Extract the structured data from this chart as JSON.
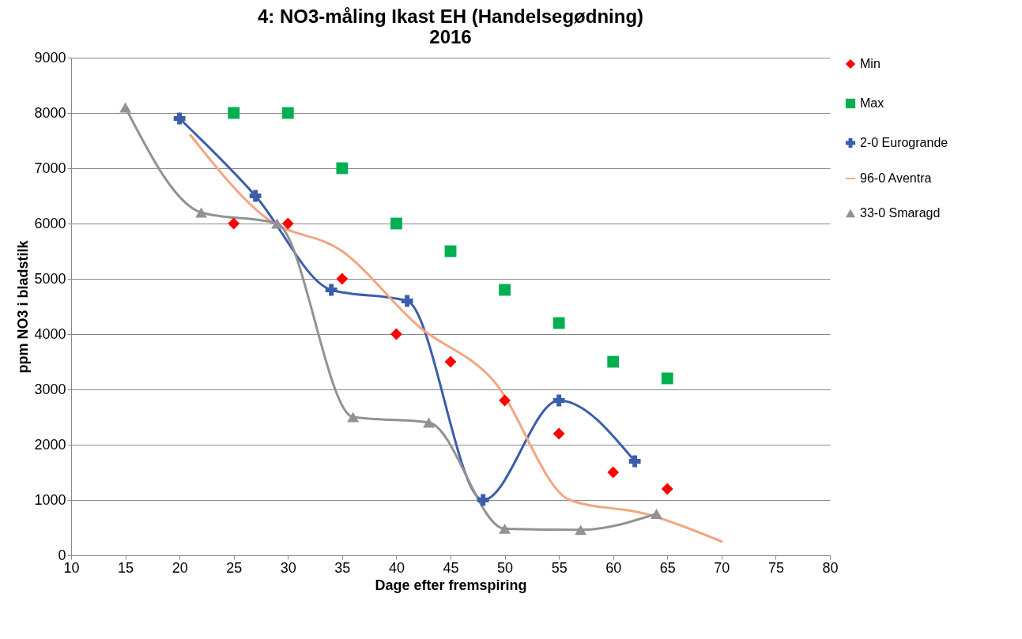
{
  "chart_data": {
    "type": "line",
    "title": "4: NO3-måling Ikast EH (Handelsegødning)\n2016",
    "xlabel": "Dage efter fremspiring",
    "ylabel": "ppm NO3 i bladstilk",
    "xlim": [
      10,
      80
    ],
    "xticks": [
      10,
      15,
      20,
      25,
      30,
      35,
      40,
      45,
      50,
      55,
      60,
      65,
      70,
      75,
      80
    ],
    "ylim": [
      0,
      9000
    ],
    "yticks": [
      0,
      1000,
      2000,
      3000,
      4000,
      5000,
      6000,
      7000,
      8000,
      9000
    ],
    "grid": "y",
    "legend": "right",
    "series": [
      {
        "name": "Min",
        "type": "scatter",
        "marker": "diamond",
        "color": "#ff0000",
        "x": [
          25,
          30,
          35,
          40,
          45,
          50,
          55,
          60,
          65
        ],
        "values": [
          6000,
          6000,
          5000,
          4000,
          3500,
          2800,
          2200,
          1500,
          1200
        ]
      },
      {
        "name": "Max",
        "type": "scatter",
        "marker": "square",
        "color": "#00b050",
        "x": [
          25,
          30,
          35,
          40,
          45,
          50,
          55,
          60,
          65
        ],
        "values": [
          8000,
          8000,
          7000,
          6000,
          5500,
          4800,
          4200,
          3500,
          3200
        ]
      },
      {
        "name": "2-0 Eurogrande",
        "type": "line",
        "marker": "cross",
        "color": "#3a5eab",
        "x": [
          20,
          27,
          34,
          41,
          48,
          55,
          62
        ],
        "values": [
          7900,
          6500,
          4800,
          4600,
          1000,
          2800,
          1700
        ]
      },
      {
        "name": "96-0 Aventra",
        "type": "line",
        "marker": "none",
        "color": "#f4a582",
        "x": [
          21,
          28,
          35,
          42,
          49,
          56,
          63,
          70
        ],
        "values": [
          7600,
          6100,
          5500,
          4150,
          3150,
          1000,
          750,
          250
        ]
      },
      {
        "name": "33-0 Smaragd",
        "type": "line",
        "marker": "triangle",
        "color": "#929292",
        "x": [
          15,
          22,
          29,
          36,
          43,
          50,
          57,
          64
        ],
        "values": [
          8100,
          6200,
          6000,
          2500,
          2400,
          480,
          460,
          750
        ]
      }
    ]
  }
}
